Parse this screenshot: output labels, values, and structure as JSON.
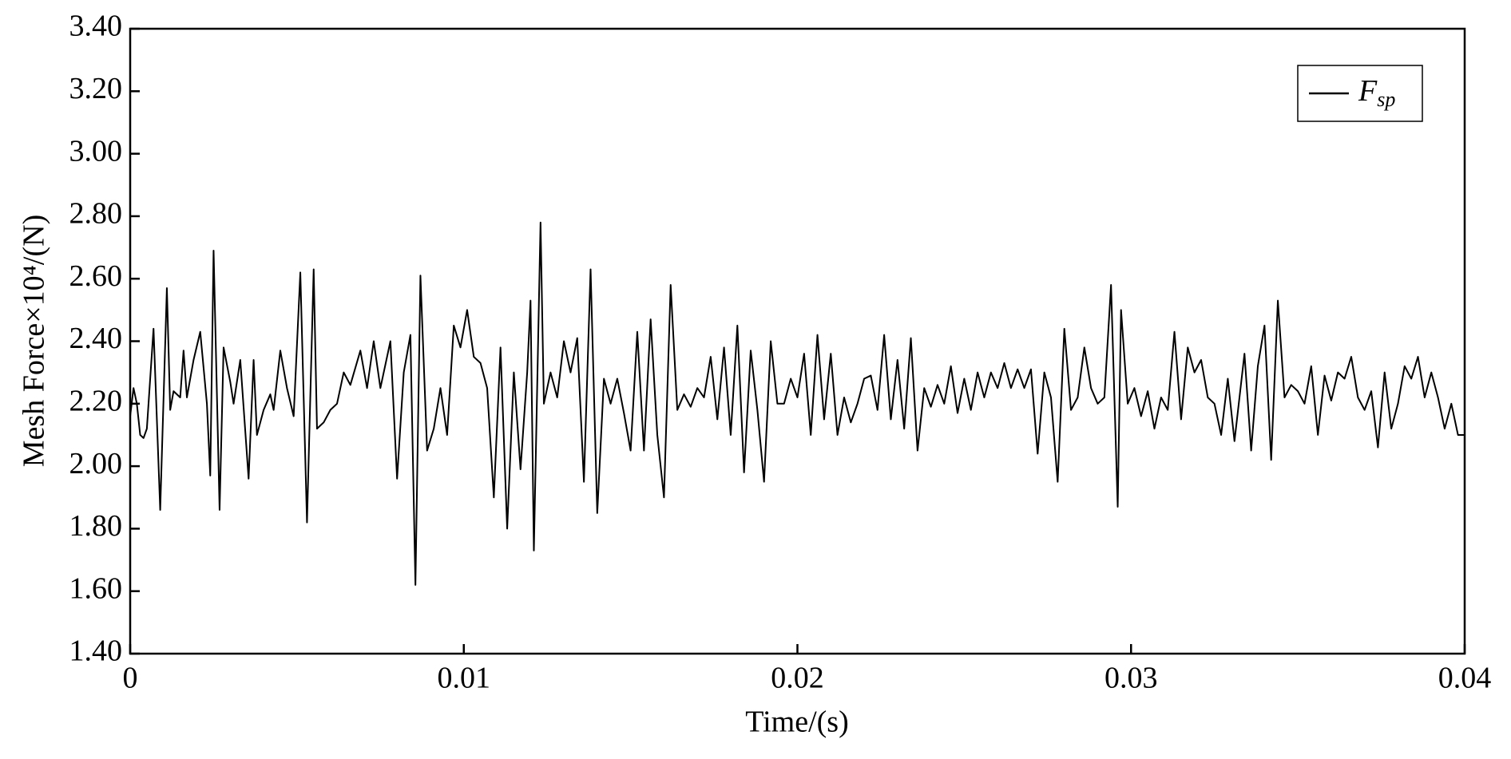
{
  "chart_data": {
    "type": "line",
    "x_label": "Time/(s)",
    "y_label": "Mesh Force×10⁴/(N)",
    "xlim": [
      0,
      0.04
    ],
    "xticks": [
      0,
      0.01,
      0.02,
      0.03,
      0.04
    ],
    "ylim": [
      1.4,
      3.4
    ],
    "yticks": [
      {
        "value": 1.4,
        "label": "1.40"
      },
      {
        "value": 1.6,
        "label": "1.60"
      },
      {
        "value": 1.8,
        "label": "1.80"
      },
      {
        "value": 2.0,
        "label": "2.00"
      },
      {
        "value": 2.2,
        "label": "2.20"
      },
      {
        "value": 2.4,
        "label": "2.40"
      },
      {
        "value": 2.6,
        "label": "2.60"
      },
      {
        "value": 2.8,
        "label": "2.80"
      },
      {
        "value": 3.0,
        "label": "3.00"
      },
      {
        "value": 3.2,
        "label": "3.20"
      },
      {
        "value": 3.4,
        "label": "3.40"
      }
    ],
    "legend": "upper right",
    "x": [
      0,
      0.0001,
      0.0002,
      0.0003,
      0.0004,
      0.0005,
      0.0007,
      0.0009,
      0.0011,
      0.0012,
      0.0013,
      0.0015,
      0.0016,
      0.0017,
      0.0019,
      0.0021,
      0.0023,
      0.0024,
      0.0025,
      0.00268,
      0.0028,
      0.003,
      0.0031,
      0.0033,
      0.00355,
      0.0037,
      0.0038,
      0.004,
      0.0042,
      0.0043,
      0.0045,
      0.0047,
      0.0049,
      0.0051,
      0.0053,
      0.0055,
      0.0056,
      0.0058,
      0.006,
      0.0062,
      0.0064,
      0.0066,
      0.0069,
      0.0071,
      0.0073,
      0.0075,
      0.0078,
      0.008,
      0.0082,
      0.0084,
      0.00855,
      0.0087,
      0.0089,
      0.0091,
      0.0093,
      0.0095,
      0.0097,
      0.0099,
      0.0101,
      0.0103,
      0.0105,
      0.0107,
      0.0109,
      0.0111,
      0.0113,
      0.0115,
      0.0117,
      0.0119,
      0.012,
      0.0121,
      0.0123,
      0.0124,
      0.0126,
      0.0128,
      0.013,
      0.0132,
      0.0134,
      0.0136,
      0.0138,
      0.014,
      0.0142,
      0.0144,
      0.0146,
      0.0148,
      0.015,
      0.0152,
      0.0154,
      0.0156,
      0.0158,
      0.016,
      0.0162,
      0.0164,
      0.0166,
      0.0168,
      0.017,
      0.0172,
      0.0174,
      0.0176,
      0.0178,
      0.018,
      0.0182,
      0.0184,
      0.0186,
      0.0188,
      0.019,
      0.0192,
      0.0194,
      0.0196,
      0.0198,
      0.02,
      0.0202,
      0.0204,
      0.0206,
      0.0208,
      0.021,
      0.0212,
      0.0214,
      0.0216,
      0.0218,
      0.022,
      0.0222,
      0.0224,
      0.0226,
      0.0228,
      0.023,
      0.0232,
      0.0234,
      0.0236,
      0.0238,
      0.024,
      0.0242,
      0.0244,
      0.0246,
      0.0248,
      0.025,
      0.0252,
      0.0254,
      0.0256,
      0.0258,
      0.026,
      0.0262,
      0.0264,
      0.0266,
      0.0268,
      0.027,
      0.0272,
      0.0274,
      0.0276,
      0.0278,
      0.028,
      0.0282,
      0.0284,
      0.0286,
      0.0288,
      0.029,
      0.0292,
      0.0294,
      0.0296,
      0.0297,
      0.0299,
      0.0301,
      0.0303,
      0.0305,
      0.0307,
      0.0309,
      0.0311,
      0.0313,
      0.0315,
      0.0317,
      0.0319,
      0.0321,
      0.0323,
      0.0325,
      0.0327,
      0.0329,
      0.0331,
      0.0334,
      0.0336,
      0.0338,
      0.034,
      0.0342,
      0.0344,
      0.0346,
      0.0348,
      0.035,
      0.0352,
      0.0354,
      0.0356,
      0.0358,
      0.036,
      0.0362,
      0.0364,
      0.0366,
      0.0368,
      0.037,
      0.0372,
      0.0374,
      0.0376,
      0.0378,
      0.038,
      0.0382,
      0.0384,
      0.0386,
      0.0388,
      0.039,
      0.0392,
      0.0394,
      0.0396,
      0.0398,
      0.04
    ],
    "series": [
      {
        "name": "Fsp",
        "color": "#000000",
        "values": [
          2.16,
          2.25,
          2.2,
          2.1,
          2.09,
          2.12,
          2.44,
          1.86,
          2.57,
          2.18,
          2.24,
          2.22,
          2.37,
          2.22,
          2.34,
          2.43,
          2.2,
          1.97,
          2.69,
          1.86,
          2.38,
          2.27,
          2.2,
          2.34,
          1.96,
          2.34,
          2.1,
          2.18,
          2.23,
          2.18,
          2.37,
          2.25,
          2.16,
          2.62,
          1.82,
          2.63,
          2.12,
          2.14,
          2.18,
          2.2,
          2.3,
          2.26,
          2.37,
          2.25,
          2.4,
          2.25,
          2.4,
          1.96,
          2.3,
          2.42,
          1.62,
          2.61,
          2.05,
          2.12,
          2.25,
          2.1,
          2.45,
          2.38,
          2.5,
          2.35,
          2.33,
          2.25,
          1.9,
          2.38,
          1.8,
          2.3,
          1.99,
          2.3,
          2.53,
          1.73,
          2.78,
          2.2,
          2.3,
          2.22,
          2.4,
          2.3,
          2.41,
          1.95,
          2.63,
          1.85,
          2.28,
          2.2,
          2.28,
          2.17,
          2.05,
          2.43,
          2.05,
          2.47,
          2.1,
          1.9,
          2.58,
          2.18,
          2.23,
          2.19,
          2.25,
          2.22,
          2.35,
          2.15,
          2.38,
          2.1,
          2.45,
          1.98,
          2.37,
          2.18,
          1.95,
          2.4,
          2.2,
          2.2,
          2.28,
          2.22,
          2.36,
          2.1,
          2.42,
          2.15,
          2.36,
          2.1,
          2.22,
          2.14,
          2.2,
          2.28,
          2.29,
          2.18,
          2.42,
          2.15,
          2.34,
          2.12,
          2.41,
          2.05,
          2.25,
          2.19,
          2.26,
          2.2,
          2.32,
          2.17,
          2.28,
          2.18,
          2.3,
          2.22,
          2.3,
          2.25,
          2.33,
          2.25,
          2.31,
          2.25,
          2.31,
          2.04,
          2.3,
          2.22,
          1.95,
          2.44,
          2.18,
          2.22,
          2.38,
          2.25,
          2.2,
          2.22,
          2.58,
          1.87,
          2.5,
          2.2,
          2.25,
          2.16,
          2.24,
          2.12,
          2.22,
          2.18,
          2.43,
          2.15,
          2.38,
          2.3,
          2.34,
          2.22,
          2.2,
          2.1,
          2.28,
          2.08,
          2.36,
          2.05,
          2.32,
          2.45,
          2.02,
          2.53,
          2.22,
          2.26,
          2.24,
          2.2,
          2.32,
          2.1,
          2.29,
          2.21,
          2.3,
          2.28,
          2.35,
          2.22,
          2.18,
          2.24,
          2.06,
          2.3,
          2.12,
          2.2,
          2.32,
          2.28,
          2.35,
          2.22,
          2.3,
          2.22,
          2.12,
          2.2,
          2.1,
          2.1
        ]
      }
    ]
  }
}
